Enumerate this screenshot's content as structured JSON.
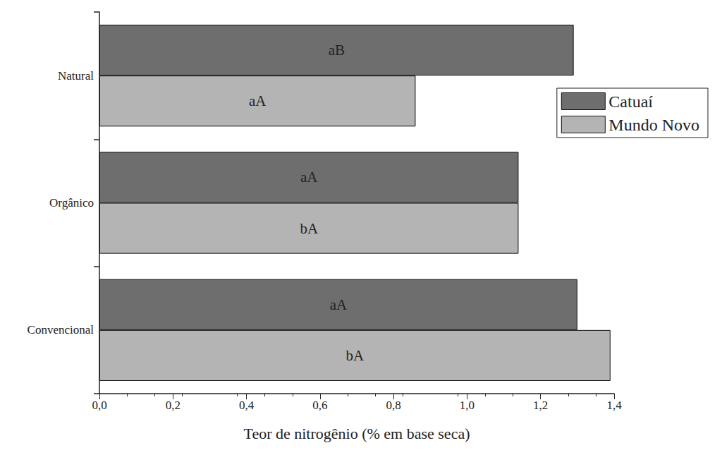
{
  "chart_data": {
    "type": "bar",
    "orientation": "horizontal",
    "x_label": "Teor de nitrogênio (% em base seca)",
    "categories": [
      "Natural",
      "Orgânico",
      "Convencional"
    ],
    "series": [
      {
        "name": "Catuaí",
        "color": "#6e6e6e",
        "values": [
          1.29,
          1.14,
          1.3
        ],
        "annotations": [
          "aB",
          "aA",
          "aA"
        ]
      },
      {
        "name": "Mundo Novo",
        "color": "#b4b4b4",
        "values": [
          0.86,
          1.14,
          1.39
        ],
        "annotations": [
          "aA",
          "bA",
          "bA"
        ]
      }
    ],
    "xlim": [
      0,
      1.4
    ],
    "xticks": [
      {
        "value": 0,
        "label": "0,0"
      },
      {
        "value": 0.2,
        "label": "0,2"
      },
      {
        "value": 0.4,
        "label": "0,4"
      },
      {
        "value": 0.6,
        "label": "0,6"
      },
      {
        "value": 0.8,
        "label": "0,8"
      },
      {
        "value": 1.0,
        "label": "1,0"
      },
      {
        "value": 1.2,
        "label": "1,2"
      },
      {
        "value": 1.4,
        "label": "1,4"
      }
    ],
    "grid": false,
    "legend": "upper right"
  }
}
